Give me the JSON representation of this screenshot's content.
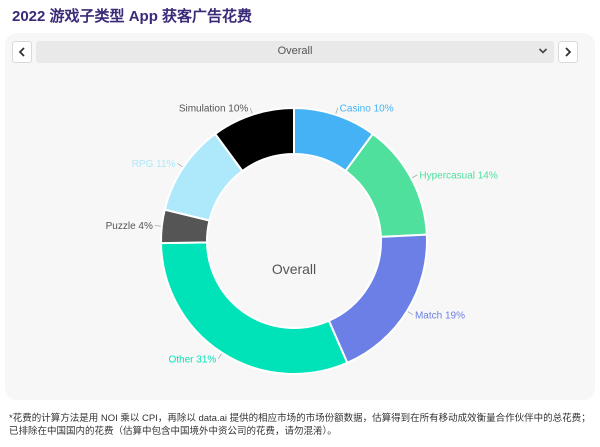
{
  "page": {
    "title": "2022 游戏子类型 App 获客广告花费"
  },
  "controls": {
    "prev_icon": "chevron-left-icon",
    "next_icon": "chevron-right-icon",
    "dropdown_icon": "chevron-down-icon",
    "selected_option": "Overall"
  },
  "chart_data": {
    "type": "pie",
    "style": "donut",
    "center_label": "Overall",
    "unit": "%",
    "slices": [
      {
        "label": "Casino 10%",
        "name": "Casino",
        "value": 10,
        "color": "#45b2f5"
      },
      {
        "label": "Hypercasual 14%",
        "name": "Hypercasual",
        "value": 14,
        "color": "#4fe09d"
      },
      {
        "label": "Match 19%",
        "name": "Match",
        "value": 19,
        "color": "#6b7fe6"
      },
      {
        "label": "Other 31%",
        "name": "Other",
        "value": 31,
        "color": "#00e3b8"
      },
      {
        "label": "Puzzle 4%",
        "name": "Puzzle",
        "value": 4,
        "color": "#555555"
      },
      {
        "label": "RPG 11%",
        "name": "RPG",
        "value": 11,
        "color": "#aee8fb"
      },
      {
        "label": "Simulation 10%",
        "name": "Simulation",
        "value": 10,
        "color": "#000000"
      }
    ]
  },
  "footnote": "*花费的计算方法是用 NOI 乘以 CPI，再除以 data.ai 提供的相应市场的市场份额数据，估算得到在所有移动成效衡量合作伙伴中的总花费；已排除在中国国内的花费（估算中包含中国境外中资公司的花费，请勿混淆）。"
}
